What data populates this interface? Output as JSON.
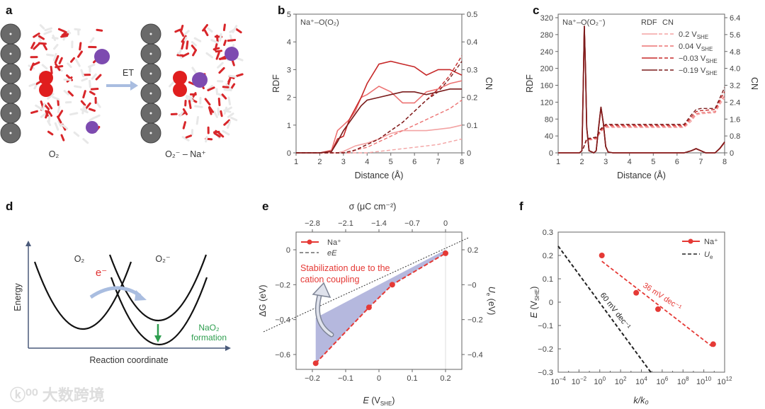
{
  "panel_letters": {
    "a": "a",
    "b": "b",
    "c": "c",
    "d": "d",
    "e": "e",
    "f": "f"
  },
  "watermark": "大数跨境",
  "illustrations": {
    "a": {
      "arrow_label": "ET",
      "left_caption": "O₂",
      "right_caption": "O₂⁻ – Na⁺"
    },
    "d": {
      "y_label": "Energy",
      "x_label": "Reaction coordinate",
      "state_left": "O₂",
      "state_right": "O₂⁻",
      "electron": "e⁻",
      "product_line1": "NaO₂",
      "product_line2": "formation",
      "colors": {
        "electron": "#e03030",
        "product": "#2e9e4f",
        "arrow": "#a9bde0"
      }
    }
  },
  "chart_data": [
    {
      "panel": "b",
      "type": "line",
      "title": "Na⁺–O(O₂)",
      "xlabel": "Distance (Å)",
      "ylabel": "RDF",
      "y2label": "CN",
      "xlim": [
        1,
        8
      ],
      "ylim": [
        0,
        5
      ],
      "y2lim": [
        0,
        0.5
      ],
      "xticks": [
        "1",
        "2",
        "3",
        "4",
        "5",
        "6",
        "7",
        "8"
      ],
      "yticks": [
        "0",
        "1",
        "2",
        "3",
        "4",
        "5"
      ],
      "y2ticks": [
        "0",
        "0.1",
        "0.2",
        "0.3",
        "0.4",
        "0.5"
      ],
      "x": [
        1,
        2,
        2.5,
        2.75,
        3,
        3.25,
        3.5,
        3.75,
        4,
        4.5,
        5,
        5.5,
        6,
        6.5,
        7,
        7.5,
        8
      ],
      "series": [
        {
          "name": "0.2 V_SHE",
          "color": "#f3a3a3",
          "rdf": [
            0,
            0,
            0,
            0,
            0.05,
            0.15,
            0.25,
            0.3,
            0.35,
            0.5,
            0.7,
            0.8,
            0.8,
            0.8,
            0.85,
            0.9,
            1.0
          ],
          "cn": [
            0,
            0,
            0,
            0,
            0,
            0,
            0,
            0,
            0,
            0.005,
            0.01,
            0.015,
            0.02,
            0.025,
            0.03,
            0.04,
            0.05
          ]
        },
        {
          "name": "0.04 V_SHE",
          "color": "#ec7272",
          "rdf": [
            0,
            0,
            0.1,
            0.8,
            1.0,
            1.2,
            1.5,
            2.0,
            2.1,
            2.4,
            2.2,
            1.8,
            1.8,
            2.2,
            2.3,
            2.5,
            2.6
          ],
          "cn": [
            0,
            0,
            0,
            0,
            0,
            0,
            0.01,
            0.015,
            0.02,
            0.04,
            0.06,
            0.08,
            0.1,
            0.12,
            0.14,
            0.16,
            0.19
          ]
        },
        {
          "name": "-0.03 V_SHE",
          "color": "#c62828",
          "rdf": [
            0,
            0,
            0.05,
            0.5,
            0.6,
            1.2,
            1.6,
            2.0,
            2.5,
            3.2,
            3.3,
            3.2,
            3.1,
            2.8,
            3.0,
            3.0,
            2.8
          ],
          "cn": [
            0,
            0,
            0,
            0,
            0,
            0.005,
            0.01,
            0.02,
            0.03,
            0.05,
            0.08,
            0.11,
            0.15,
            0.19,
            0.23,
            0.28,
            0.35
          ]
        },
        {
          "name": "-0.19 V_SHE",
          "color": "#7a1c1c",
          "rdf": [
            0,
            0,
            0.05,
            0.4,
            0.8,
            1.1,
            1.4,
            1.7,
            1.9,
            2.0,
            2.1,
            2.2,
            2.2,
            2.1,
            2.2,
            2.3,
            2.3
          ],
          "cn": [
            0,
            0,
            0,
            0,
            0,
            0.005,
            0.01,
            0.02,
            0.03,
            0.05,
            0.08,
            0.11,
            0.15,
            0.19,
            0.22,
            0.27,
            0.33
          ]
        }
      ]
    },
    {
      "panel": "c",
      "type": "line",
      "title": "Na⁺–O(O₂⁻)",
      "xlabel": "Distance (Å)",
      "ylabel": "RDF",
      "y2label": "CN",
      "xlim": [
        1,
        8
      ],
      "ylim": [
        0,
        320
      ],
      "y2lim": [
        0,
        6.4
      ],
      "xticks": [
        "1",
        "2",
        "3",
        "4",
        "5",
        "6",
        "7",
        "8"
      ],
      "yticks": [
        "0",
        "40",
        "80",
        "120",
        "160",
        "200",
        "240",
        "280",
        "320"
      ],
      "y2ticks": [
        "0",
        "0.8",
        "1.6",
        "2.4",
        "3.2",
        "4.0",
        "4.8",
        "5.6",
        "6.4"
      ],
      "legend_header": {
        "rdf": "RDF",
        "cn": "CN"
      },
      "x_rdf": [
        1,
        1.9,
        2.0,
        2.05,
        2.1,
        2.15,
        2.2,
        2.3,
        2.5,
        2.6,
        2.7,
        2.8,
        2.9,
        3.0,
        3.1,
        3.3,
        6.3,
        6.6,
        6.8,
        7.0,
        7.2,
        7.6,
        7.8,
        8
      ],
      "x_cn": [
        2.05,
        2.2,
        2.4,
        2.6,
        2.8,
        3.0,
        3.2,
        6.3,
        6.6,
        6.8,
        7.0,
        7.6,
        7.8,
        8
      ],
      "series": [
        {
          "name": "0.2",
          "unit": "V",
          "unit_sub": "SHE",
          "color": "#f3a3a3",
          "rdf": [
            0,
            0,
            5,
            148,
            296,
            198,
            59,
            5,
            0,
            5,
            58,
            106,
            69,
            15,
            2,
            0,
            0,
            5,
            9,
            5,
            0,
            0,
            10,
            24
          ],
          "cn": [
            0.2,
            0.6,
            0.62,
            0.65,
            1.0,
            1.2,
            1.2,
            1.2,
            1.5,
            1.8,
            1.85,
            1.9,
            2.3,
            2.6
          ]
        },
        {
          "name": "0.04",
          "unit": "V",
          "unit_sub": "SHE",
          "color": "#ec7272",
          "rdf": [
            0,
            0,
            5,
            149,
            298,
            199,
            60,
            5,
            0,
            5,
            59,
            107,
            70,
            15,
            2,
            0,
            0,
            5,
            10,
            5,
            0,
            0,
            10,
            25
          ],
          "cn": [
            0.2,
            0.62,
            0.64,
            0.68,
            1.05,
            1.25,
            1.25,
            1.25,
            1.6,
            1.85,
            1.9,
            1.95,
            2.4,
            2.7
          ]
        },
        {
          "name": "−0.03",
          "unit": "V",
          "unit_sub": "SHE",
          "color": "#c62828",
          "rdf": [
            0,
            0,
            5,
            150,
            300,
            200,
            60,
            5,
            0,
            5,
            60,
            108,
            70,
            15,
            2,
            0,
            0,
            5,
            10,
            5,
            0,
            0,
            10,
            25
          ],
          "cn": [
            0.2,
            0.65,
            0.68,
            0.72,
            1.1,
            1.3,
            1.3,
            1.3,
            1.7,
            1.95,
            2.0,
            2.05,
            2.5,
            2.9
          ]
        },
        {
          "name": "−0.19",
          "unit": "V",
          "unit_sub": "SHE",
          "color": "#7a1c1c",
          "rdf": [
            0,
            0,
            5,
            150,
            301,
            200,
            61,
            5,
            0,
            5,
            60,
            109,
            70,
            15,
            2,
            0,
            0,
            5,
            10,
            5,
            0,
            0,
            11,
            26
          ],
          "cn": [
            0.2,
            0.68,
            0.7,
            0.75,
            1.15,
            1.35,
            1.35,
            1.35,
            1.8,
            2.05,
            2.1,
            2.1,
            2.6,
            3.1
          ]
        }
      ]
    },
    {
      "panel": "e",
      "type": "scatter",
      "xlabel": "E",
      "xlabel_unit": "V",
      "xlabel_sub": "SHE",
      "ylabel": "ΔG (eV)",
      "x2label": "σ (μC cm⁻²)",
      "y2label_main": "U",
      "y2label_sub": "e",
      "y2label_unit": " (eV)",
      "xlim": [
        -0.25,
        0.25
      ],
      "ylim": [
        -0.685,
        0.1
      ],
      "xticks": [
        {
          "v": -0.2,
          "l": "−0.2"
        },
        {
          "v": -0.1,
          "l": "−0.1"
        },
        {
          "v": 0,
          "l": "0"
        },
        {
          "v": 0.1,
          "l": "0.1"
        },
        {
          "v": 0.2,
          "l": "0.2"
        }
      ],
      "yticks": [
        {
          "v": 0,
          "l": "0"
        },
        {
          "v": -0.2,
          "l": "−0.2"
        },
        {
          "v": -0.4,
          "l": "−0.4"
        },
        {
          "v": -0.6,
          "l": "−0.6"
        }
      ],
      "x2ticks": [
        {
          "v": -2.8,
          "l": "−2.8"
        },
        {
          "v": -2.1,
          "l": "−2.1"
        },
        {
          "v": -1.4,
          "l": "−1.4"
        },
        {
          "v": -0.7,
          "l": "−0.7"
        },
        {
          "v": 0,
          "l": "0"
        }
      ],
      "y2ticks": [
        {
          "v": 0.2,
          "l": "0.2"
        },
        {
          "v": 0,
          "l": "−0"
        },
        {
          "v": -0.2,
          "l": "−0.2"
        },
        {
          "v": -0.4,
          "l": "−0.4"
        }
      ],
      "series": [
        {
          "name": "Na⁺",
          "color": "#e53935",
          "x": [
            -0.19,
            -0.03,
            0.04,
            0.2
          ],
          "y": [
            -0.65,
            -0.33,
            -0.2,
            -0.02
          ]
        },
        {
          "name": "eE",
          "color": "#222222",
          "slope": 1,
          "intercept": -0.2
        }
      ],
      "shade_color": "#a8acd8",
      "annotation": [
        "Stabilization due to the",
        "cation coupling"
      ],
      "annotation_color": "#e53935"
    },
    {
      "panel": "f",
      "type": "scatter",
      "xlabel": "k/k₀",
      "ylabel_main": "E",
      "ylabel_unit": "V",
      "ylabel_sub": "SHE",
      "xscale": "log",
      "xlim_log10": [
        -4,
        12
      ],
      "ylim": [
        -0.3,
        0.3
      ],
      "xticks": [
        {
          "v": -4,
          "l": "−4"
        },
        {
          "v": -2,
          "l": "−2"
        },
        {
          "v": 0,
          "l": "0"
        },
        {
          "v": 2,
          "l": "2"
        },
        {
          "v": 4,
          "l": "4"
        },
        {
          "v": 6,
          "l": "6"
        },
        {
          "v": 8,
          "l": "8"
        },
        {
          "v": 10,
          "l": "10"
        },
        {
          "v": 12,
          "l": "12"
        }
      ],
      "xtick_base": "10",
      "yticks": [
        {
          "v": 0.3,
          "l": "0.3"
        },
        {
          "v": 0.2,
          "l": "0.2"
        },
        {
          "v": 0.1,
          "l": "0.1"
        },
        {
          "v": 0,
          "l": "0"
        },
        {
          "v": -0.1,
          "l": "−0.1"
        },
        {
          "v": -0.2,
          "l": "−0.2"
        },
        {
          "v": -0.3,
          "l": "−0.3"
        }
      ],
      "series": [
        {
          "name": "Na⁺",
          "color": "#e53935",
          "log10_x": [
            0.2,
            3.5,
            5.6,
            10.9
          ],
          "y": [
            0.2,
            0.04,
            -0.03,
            -0.18
          ],
          "fit": {
            "log10_x": [
              0.2,
              10.8
            ],
            "y": [
              0.175,
              -0.19
            ]
          },
          "slope_label": "36 mV dec⁻¹"
        },
        {
          "name_main": "U",
          "name_sub": "e",
          "color": "#222222",
          "fit": {
            "log10_x": [
              -4,
              4.9
            ],
            "y": [
              0.24,
              -0.3
            ]
          },
          "slope_label": "60 mV dec⁻¹"
        }
      ]
    }
  ]
}
